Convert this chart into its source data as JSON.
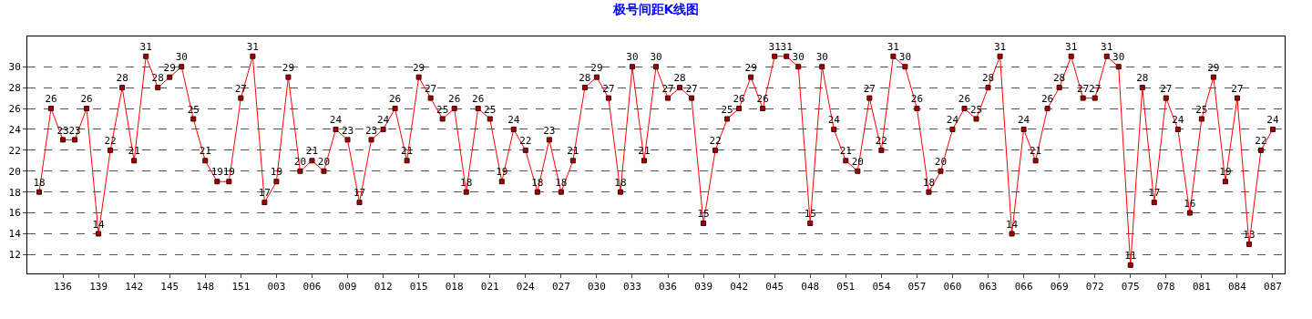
{
  "chart_data": {
    "type": "line",
    "title": "极号间距K线图",
    "categories": [
      null,
      null,
      "136",
      null,
      null,
      "139",
      null,
      null,
      "142",
      null,
      null,
      "145",
      null,
      null,
      "148",
      null,
      null,
      "151",
      null,
      null,
      "003",
      null,
      null,
      "006",
      null,
      null,
      "009",
      null,
      null,
      "012",
      null,
      null,
      "015",
      null,
      null,
      "018",
      null,
      null,
      "021",
      null,
      null,
      "024",
      null,
      null,
      "027",
      null,
      null,
      "030",
      null,
      null,
      "033",
      null,
      null,
      "036",
      null,
      null,
      "039",
      null,
      null,
      "042",
      null,
      null,
      "045",
      null,
      null,
      "048",
      null,
      null,
      "051",
      null,
      null,
      "054",
      null,
      null,
      "057",
      null,
      null,
      "060",
      null,
      null,
      "063",
      null,
      null,
      "066",
      null,
      null,
      "069",
      null,
      null,
      "072",
      null,
      null,
      "075",
      null,
      null,
      "078",
      null,
      null,
      "081",
      null,
      null,
      "084",
      null,
      null,
      "087"
    ],
    "series": [
      {
        "color": "#ff0000",
        "values": [
          18,
          26,
          23,
          23,
          26,
          14,
          22,
          28,
          21,
          31,
          28,
          29,
          30,
          25,
          21,
          19,
          19,
          27,
          31,
          17,
          19,
          29,
          20,
          21,
          20,
          24,
          23,
          17,
          23,
          24,
          26,
          21,
          29,
          27,
          25,
          26,
          18,
          26,
          25,
          19,
          24,
          22,
          18,
          23,
          18,
          21,
          28,
          29,
          27,
          18,
          30,
          21,
          30,
          27,
          28,
          27,
          15,
          22,
          25,
          26,
          29,
          26,
          31,
          31,
          30,
          15,
          30,
          24,
          21,
          20,
          27,
          22,
          31,
          30,
          26,
          18,
          20,
          24,
          26,
          25,
          28,
          31,
          14,
          24,
          21,
          26,
          28,
          31,
          27,
          27,
          31,
          30,
          11,
          28,
          17,
          27,
          24,
          16,
          25,
          29,
          19,
          27,
          13,
          22,
          24
        ]
      }
    ],
    "ylim": [
      10.2,
      32.9
    ],
    "yticks": [
      12,
      14,
      16,
      18,
      20,
      22,
      24,
      26,
      28,
      30
    ],
    "grid": "y",
    "marker": "square",
    "line_style": "solid",
    "data_labels": true
  }
}
